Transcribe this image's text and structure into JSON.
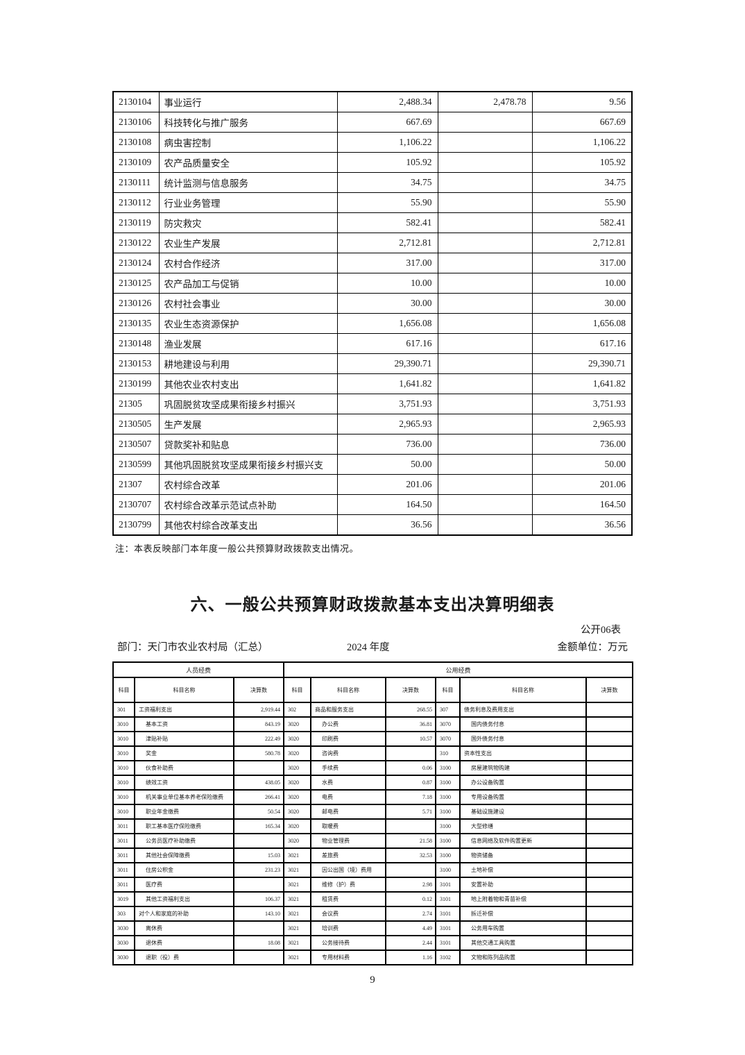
{
  "note": "注：本表反映部门本年度一般公共预算财政拨款支出情况。",
  "section": {
    "title": "六、一般公共预算财政拨款基本支出决算明细表",
    "table_no": "公开06表",
    "department": "部门：天门市农业农村局（汇总）",
    "year": "2024 年度",
    "unit": "金额单位：万元"
  },
  "page": {
    "number": "9"
  },
  "table1": {
    "rows": [
      [
        "2130104",
        "事业运行",
        "2,488.34",
        "2,478.78",
        "9.56"
      ],
      [
        "2130106",
        "科技转化与推广服务",
        "667.69",
        "",
        "667.69"
      ],
      [
        "2130108",
        "病虫害控制",
        "1,106.22",
        "",
        "1,106.22"
      ],
      [
        "2130109",
        "农产品质量安全",
        "105.92",
        "",
        "105.92"
      ],
      [
        "2130111",
        "统计监测与信息服务",
        "34.75",
        "",
        "34.75"
      ],
      [
        "2130112",
        "行业业务管理",
        "55.90",
        "",
        "55.90"
      ],
      [
        "2130119",
        "防灾救灾",
        "582.41",
        "",
        "582.41"
      ],
      [
        "2130122",
        "农业生产发展",
        "2,712.81",
        "",
        "2,712.81"
      ],
      [
        "2130124",
        "农村合作经济",
        "317.00",
        "",
        "317.00"
      ],
      [
        "2130125",
        "农产品加工与促销",
        "10.00",
        "",
        "10.00"
      ],
      [
        "2130126",
        "农村社会事业",
        "30.00",
        "",
        "30.00"
      ],
      [
        "2130135",
        "农业生态资源保护",
        "1,656.08",
        "",
        "1,656.08"
      ],
      [
        "2130148",
        "渔业发展",
        "617.16",
        "",
        "617.16"
      ],
      [
        "2130153",
        "耕地建设与利用",
        "29,390.71",
        "",
        "29,390.71"
      ],
      [
        "2130199",
        "其他农业农村支出",
        "1,641.82",
        "",
        "1,641.82"
      ],
      [
        "21305",
        "巩固脱贫攻坚成果衔接乡村振兴",
        "3,751.93",
        "",
        "3,751.93"
      ],
      [
        "2130505",
        "生产发展",
        "2,965.93",
        "",
        "2,965.93"
      ],
      [
        "2130507",
        "贷款奖补和贴息",
        "736.00",
        "",
        "736.00"
      ],
      [
        "2130599",
        "其他巩固脱贫攻坚成果衔接乡村振兴支",
        "50.00",
        "",
        "50.00"
      ],
      [
        "21307",
        "农村综合改革",
        "201.06",
        "",
        "201.06"
      ],
      [
        "2130707",
        "农村综合改革示范试点补助",
        "164.50",
        "",
        "164.50"
      ],
      [
        "2130799",
        "其他农村综合改革支出",
        "36.56",
        "",
        "36.56"
      ]
    ]
  },
  "table2": {
    "group_headers": [
      "人员经费",
      "公用经费"
    ],
    "column_headers": [
      "科目",
      "科目名称",
      "决算数"
    ],
    "rows": [
      [
        "301",
        "工资福利支出",
        "2,919.44",
        "302",
        "商品和服务支出",
        "268.55",
        "307",
        "债务利息及费用支出",
        ""
      ],
      [
        "3010",
        "基本工资",
        "843.19",
        "3020",
        "办公费",
        "36.81",
        "3070",
        "国内债务付息",
        ""
      ],
      [
        "3010",
        "津贴补贴",
        "222.49",
        "3020",
        "印刷费",
        "10.57",
        "3070",
        "国外债务付息",
        ""
      ],
      [
        "3010",
        "奖金",
        "580.78",
        "3020",
        "咨询费",
        "",
        "310",
        "资本性支出",
        ""
      ],
      [
        "3010",
        "伙食补助费",
        "",
        "3020",
        "手续费",
        "0.06",
        "3100",
        "房屋建筑物购建",
        ""
      ],
      [
        "3010",
        "绩效工资",
        "438.05",
        "3020",
        "水费",
        "0.87",
        "3100",
        "办公设备购置",
        ""
      ],
      [
        "3010",
        "机关事业单位基本养老保险缴费",
        "266.41",
        "3020",
        "电费",
        "7.18",
        "3100",
        "专用设备购置",
        ""
      ],
      [
        "3010",
        "职业年金缴费",
        "50.54",
        "3020",
        "邮电费",
        "5.71",
        "3100",
        "基础设施建设",
        ""
      ],
      [
        "3011",
        "职工基本医疗保险缴费",
        "165.34",
        "3020",
        "取暖费",
        "",
        "3100",
        "大型修缮",
        ""
      ],
      [
        "3011",
        "公务员医疗补助缴费",
        "",
        "3020",
        "物业管理费",
        "21.58",
        "3100",
        "信息网络及软件购置更新",
        ""
      ],
      [
        "3011",
        "其他社会保障缴费",
        "15.03",
        "3021",
        "差旅费",
        "32.53",
        "3100",
        "物资储备",
        ""
      ],
      [
        "3011",
        "住房公积金",
        "231.23",
        "3021",
        "因公出国（境）费用",
        "",
        "3100",
        "土地补偿",
        ""
      ],
      [
        "3011",
        "医疗费",
        "",
        "3021",
        "维修（护）费",
        "2.98",
        "3101",
        "安置补助",
        ""
      ],
      [
        "3019",
        "其他工资福利支出",
        "106.37",
        "3021",
        "租赁费",
        "0.12",
        "3101",
        "地上附着物和青苗补偿",
        ""
      ],
      [
        "303",
        "对个人和家庭的补助",
        "143.10",
        "3021",
        "会议费",
        "2.74",
        "3101",
        "拆迁补偿",
        ""
      ],
      [
        "3030",
        "离休费",
        "",
        "3021",
        "培训费",
        "4.49",
        "3101",
        "公务用车购置",
        ""
      ],
      [
        "3030",
        "退休费",
        "18.08",
        "3021",
        "公务接待费",
        "2.44",
        "3101",
        "其他交通工具购置",
        ""
      ],
      [
        "3030",
        "退职（役）费",
        "",
        "3021",
        "专用材料费",
        "1.16",
        "3102",
        "文物和陈列品购置",
        ""
      ]
    ]
  }
}
